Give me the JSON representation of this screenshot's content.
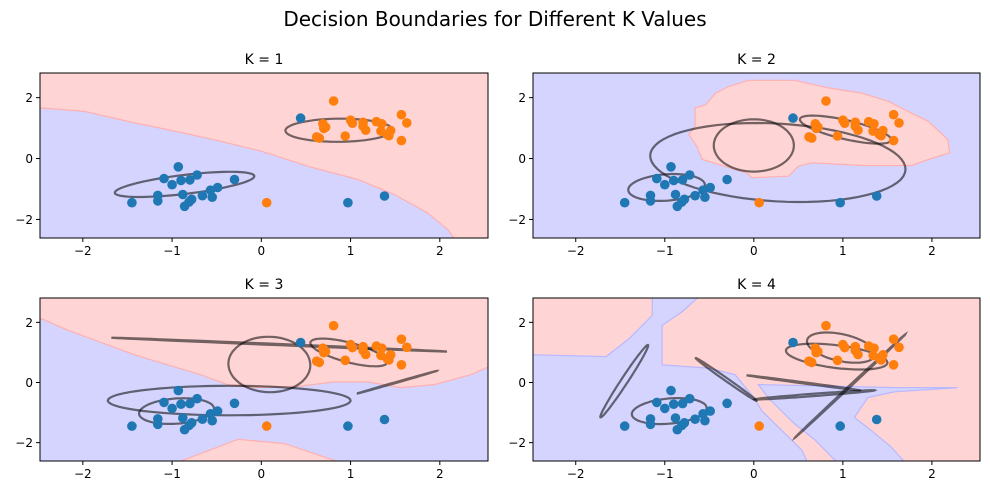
{
  "chart_data": {
    "type": "scatter",
    "title": "Decision Boundaries for Different K Values",
    "xlim": [
      -2.48,
      2.54
    ],
    "ylim": [
      -2.61,
      2.81
    ],
    "x_ticks": [
      "−2",
      "−1",
      "0",
      "1",
      "2"
    ],
    "x_tick_values": [
      -2,
      -1,
      0,
      1,
      2
    ],
    "y_ticks": [
      "−2",
      "0",
      "2"
    ],
    "y_tick_values": [
      -2,
      0,
      2
    ],
    "grid": false,
    "colors": {
      "class0": "#1f77b4",
      "class1": "#ff7f0e",
      "region0": "#d4d4ff",
      "region1": "#ffd4d4",
      "ellipse": "#4a4a4a"
    },
    "series": [
      {
        "class": 0,
        "points": [
          [
            0.44,
            1.33
          ],
          [
            -0.93,
            -0.27
          ],
          [
            -1.09,
            -0.66
          ],
          [
            -1.0,
            -0.86
          ],
          [
            -0.9,
            -0.72
          ],
          [
            -0.8,
            -0.7
          ],
          [
            -0.72,
            -0.54
          ],
          [
            -0.3,
            -0.69
          ],
          [
            -1.45,
            -1.45
          ],
          [
            -1.16,
            -1.21
          ],
          [
            -1.16,
            -1.39
          ],
          [
            -0.88,
            -1.18
          ],
          [
            -0.86,
            -1.57
          ],
          [
            -0.81,
            -1.43
          ],
          [
            -0.78,
            -1.34
          ],
          [
            -0.66,
            -1.22
          ],
          [
            -0.57,
            -1.04
          ],
          [
            -0.49,
            -0.95
          ],
          [
            -0.55,
            -1.27
          ],
          [
            0.97,
            -1.45
          ],
          [
            1.38,
            -1.23
          ]
        ]
      },
      {
        "class": 1,
        "points": [
          [
            0.06,
            -1.45
          ],
          [
            0.81,
            1.89
          ],
          [
            0.62,
            0.71
          ],
          [
            0.65,
            0.67
          ],
          [
            0.69,
            1.14
          ],
          [
            0.7,
            0.99
          ],
          [
            0.72,
            1.03
          ],
          [
            0.94,
            0.74
          ],
          [
            1.0,
            1.26
          ],
          [
            1.02,
            1.16
          ],
          [
            1.14,
            1.19
          ],
          [
            1.14,
            1.06
          ],
          [
            1.17,
            0.93
          ],
          [
            1.29,
            1.21
          ],
          [
            1.35,
            1.14
          ],
          [
            1.34,
            0.9
          ],
          [
            1.41,
            0.79
          ],
          [
            1.43,
            0.75
          ],
          [
            1.45,
            0.92
          ],
          [
            1.57,
            1.44
          ],
          [
            1.63,
            1.17
          ],
          [
            1.57,
            0.59
          ]
        ]
      }
    ],
    "subplots": [
      {
        "title": "K = 1",
        "background_class": 0,
        "regions": [
          {
            "class": 1,
            "polygon": [
              [
                -2.7,
                1.68
              ],
              [
                -2.46,
                1.66
              ],
              [
                -1.98,
                1.55
              ],
              [
                -1.42,
                1.17
              ],
              [
                -1.05,
                0.95
              ],
              [
                -0.53,
                0.62
              ],
              [
                0,
                0.24
              ],
              [
                0.52,
                -0.25
              ],
              [
                1.08,
                -0.69
              ],
              [
                1.49,
                -1.18
              ],
              [
                1.86,
                -1.78
              ],
              [
                2.09,
                -2.33
              ],
              [
                2.18,
                -2.7
              ],
              [
                2.7,
                -2.7
              ],
              [
                2.7,
                2.9
              ],
              [
                -2.7,
                2.9
              ]
            ]
          }
        ],
        "ellipses": [
          {
            "center": [
              -0.86,
              -0.85
            ],
            "u": [
              0.78,
              0.25
            ],
            "v": [
              0.05,
              0.33
            ]
          },
          {
            "center": [
              0.87,
              0.93
            ],
            "u": [
              0.6,
              0.0
            ],
            "v": [
              0.02,
              0.38
            ]
          }
        ]
      },
      {
        "title": "K = 2",
        "background_class": 0,
        "regions": [
          {
            "class": 1,
            "polygon": [
              [
                -0.66,
                1.66
              ],
              [
                -0.54,
                1.77
              ],
              [
                -0.43,
                2.15
              ],
              [
                -0.28,
                2.37
              ],
              [
                -0.06,
                2.57
              ],
              [
                0.46,
                2.57
              ],
              [
                0.84,
                2.32
              ],
              [
                1.21,
                2.15
              ],
              [
                1.51,
                1.88
              ],
              [
                1.73,
                1.55
              ],
              [
                1.96,
                1.22
              ],
              [
                2.18,
                0.62
              ],
              [
                2.2,
                0.19
              ],
              [
                1.96,
                -0.03
              ],
              [
                1.77,
                -0.23
              ],
              [
                1.21,
                -0.23
              ],
              [
                0.65,
                -0.14
              ],
              [
                0.5,
                -0.25
              ],
              [
                0.39,
                -0.58
              ],
              [
                -0.02,
                -0.63
              ],
              [
                -0.08,
                -0.47
              ],
              [
                -0.58,
                -0.03
              ],
              [
                -0.64,
                0.4
              ],
              [
                -0.73,
                0.79
              ],
              [
                -0.66,
                1.06
              ]
            ]
          }
        ],
        "ellipses": [
          {
            "center": [
              0.0,
              0.43
            ],
            "u": [
              0.45,
              0
            ],
            "v": [
              0,
              0.86
            ]
          },
          {
            "center": [
              0.27,
              -0.13
            ],
            "u": [
              1.43,
              -0.13
            ],
            "v": [
              -0.1,
              1.29
            ]
          },
          {
            "center": [
              -0.98,
              -0.95
            ],
            "u": [
              0.43,
              0.1
            ],
            "v": [
              -0.02,
              0.43
            ]
          },
          {
            "center": [
              1.03,
              0.95
            ],
            "u": [
              0.51,
              -0.3
            ],
            "v": [
              -0.05,
              0.35
            ]
          }
        ]
      },
      {
        "title": "K = 3",
        "background_class": 0,
        "regions": [
          {
            "class": 1,
            "polygon": [
              [
                -2.7,
                2.2
              ],
              [
                -2.46,
                2.12
              ],
              [
                -2.17,
                1.74
              ],
              [
                -1.72,
                1.25
              ],
              [
                -1.42,
                0.92
              ],
              [
                -1.05,
                0.59
              ],
              [
                -0.68,
                0.26
              ],
              [
                -0.38,
                -0.07
              ],
              [
                -0.08,
                -0.17
              ],
              [
                0.44,
                -0.12
              ],
              [
                0.82,
                0.02
              ],
              [
                1.19,
                0.02
              ],
              [
                1.56,
                -0.17
              ],
              [
                1.94,
                -0.07
              ],
              [
                2.35,
                0.26
              ],
              [
                2.56,
                0.54
              ],
              [
                2.7,
                0.6
              ],
              [
                2.7,
                2.9
              ],
              [
                -2.7,
                2.9
              ]
            ]
          },
          {
            "class": 1,
            "polygon": [
              [
                -0.98,
                -2.7
              ],
              [
                -0.26,
                -1.89
              ],
              [
                0.26,
                -2.03
              ],
              [
                0.93,
                -2.7
              ]
            ]
          }
        ],
        "ellipses": [
          {
            "center": [
              0.2,
              1.26
            ],
            "u": [
              1.88,
              -0.23
            ],
            "v": [
              0,
              0.02
            ]
          },
          {
            "center": [
              1.52,
              0.01
            ],
            "u": [
              0.45,
              0.38
            ],
            "v": [
              0,
              0.015
            ]
          },
          {
            "center": [
              -0.36,
              -0.6
            ],
            "u": [
              1.36,
              0
            ],
            "v": [
              0,
              0.49
            ]
          },
          {
            "center": [
              0.09,
              0.6
            ],
            "u": [
              0.09,
              0.9
            ],
            "v": [
              0.45,
              -0.2
            ]
          },
          {
            "center": [
              -0.95,
              -0.95
            ],
            "u": [
              0.42,
              0.08
            ],
            "v": [
              0,
              0.42
            ]
          },
          {
            "center": [
              0.98,
              1.0
            ],
            "u": [
              0.43,
              -0.3
            ],
            "v": [
              -0.02,
              0.35
            ]
          }
        ]
      },
      {
        "title": "K = 4",
        "background_class": 1,
        "regions": [
          {
            "class": 0,
            "polygon": [
              [
                -2.7,
                0.92
              ],
              [
                -2.47,
                0.92
              ],
              [
                -1.66,
                0.86
              ],
              [
                -1.4,
                1.46
              ],
              [
                -1.14,
                2.23
              ],
              [
                -1.14,
                2.9
              ],
              [
                -0.6,
                2.9
              ],
              [
                -0.81,
                2.34
              ],
              [
                -1.03,
                1.9
              ],
              [
                -1.03,
                0.59
              ],
              [
                -0.51,
                0.48
              ],
              [
                -0.21,
                0.26
              ],
              [
                0,
                -0.5
              ],
              [
                0.09,
                -0.94
              ],
              [
                0.35,
                -1.7
              ],
              [
                0.54,
                -2.25
              ],
              [
                0.61,
                -2.7
              ],
              [
                -2.7,
                -2.7
              ]
            ]
          },
          {
            "class": 0,
            "polygon": [
              [
                0.05,
                -0.07
              ],
              [
                0.84,
                -0.12
              ],
              [
                1.58,
                -0.17
              ],
              [
                2.29,
                -0.17
              ],
              [
                1.58,
                -0.31
              ],
              [
                1.28,
                -0.5
              ],
              [
                1.13,
                -1.16
              ],
              [
                1.32,
                -1.6
              ],
              [
                1.54,
                -2.14
              ],
              [
                1.71,
                -2.7
              ],
              [
                0.95,
                -2.7
              ],
              [
                0.69,
                -1.92
              ],
              [
                0.46,
                -1.38
              ],
              [
                0.31,
                -0.94
              ],
              [
                0.16,
                -0.5
              ]
            ]
          }
        ],
        "ellipses": [
          {
            "center": [
              -1.455,
              0.045
            ],
            "u": [
              0.265,
              1.205
            ],
            "v": [
              0.045,
              0
            ]
          },
          {
            "center": [
              -0.31,
              0.1
            ],
            "u": [
              0.34,
              -0.71
            ],
            "v": [
              0.03,
              0
            ]
          },
          {
            "center": [
              0.555,
              -0.01
            ],
            "u": [
              0.635,
              -0.25
            ],
            "v": [
              0,
              0.02
            ]
          },
          {
            "center": [
              0.685,
              -0.41
            ],
            "u": [
              0.675,
              0.15
            ],
            "v": [
              0,
              0.04
            ]
          },
          {
            "center": [
              1.08,
              -0.12
            ],
            "u": [
              0.62,
              1.72
            ],
            "v": [
              0.012,
              0
            ]
          },
          {
            "center": [
              -0.95,
              -0.95
            ],
            "u": [
              0.42,
              0.1
            ],
            "v": [
              0,
              0.42
            ]
          },
          {
            "center": [
              0.93,
              0.86
            ],
            "u": [
              0.57,
              -0.2
            ],
            "v": [
              0,
              0.38
            ]
          },
          {
            "center": [
              0.98,
              1.16
            ],
            "u": [
              0.38,
              -0.15
            ],
            "v": [
              -0.05,
              0.48
            ]
          }
        ]
      }
    ]
  }
}
